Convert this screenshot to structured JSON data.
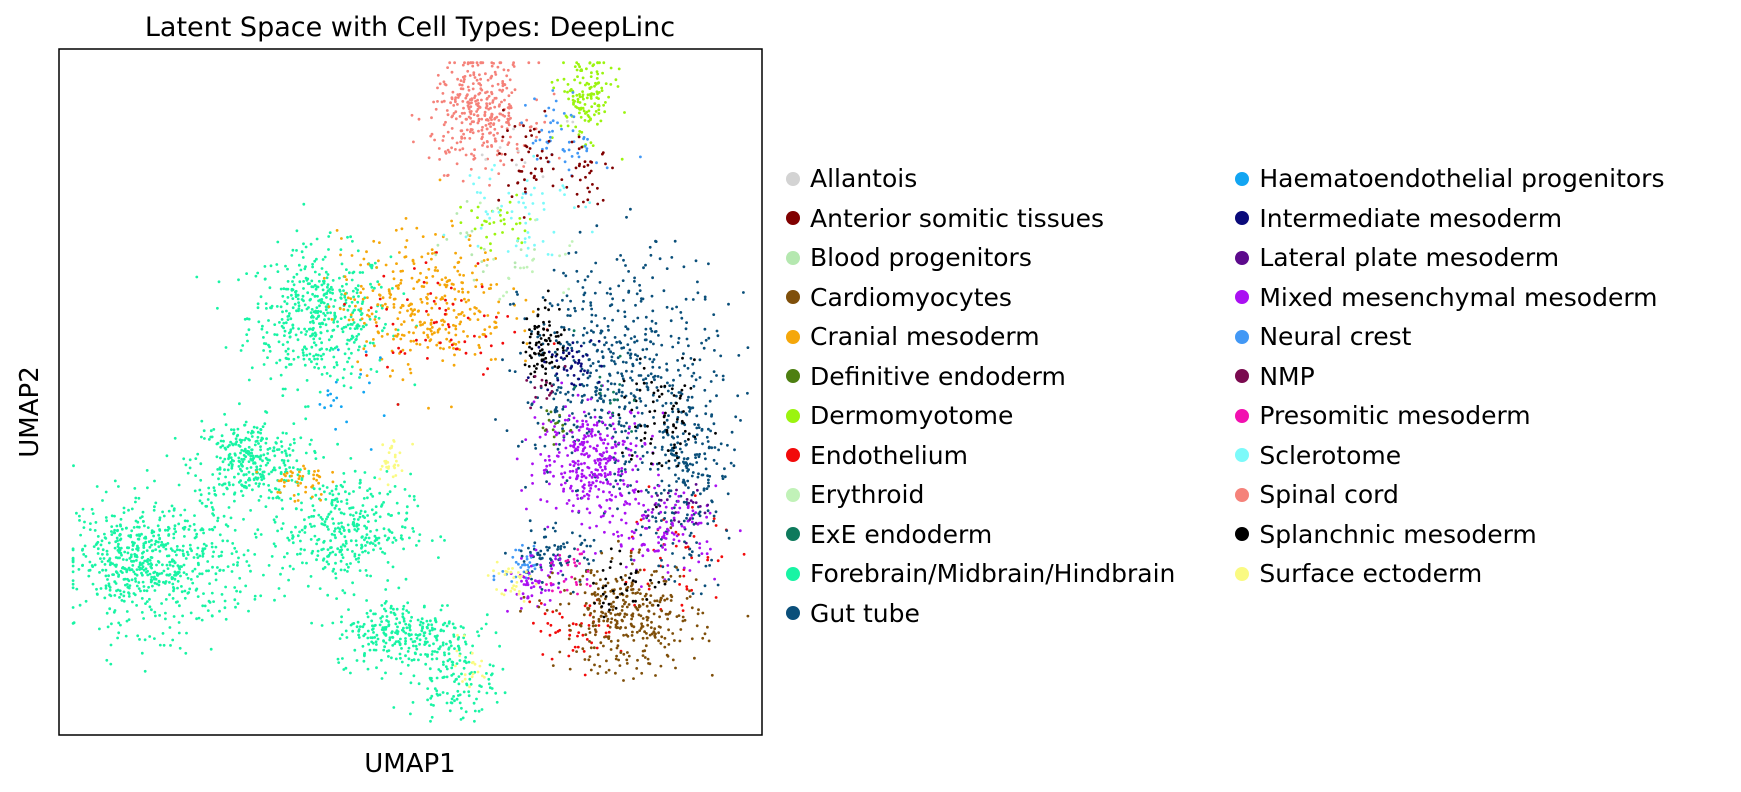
{
  "chart_data": {
    "type": "scatter",
    "title": "Latent Space with Cell Types: DeepLinc",
    "xlabel": "UMAP1",
    "ylabel": "UMAP2",
    "xlim": [
      0,
      100
    ],
    "ylim": [
      0,
      100
    ],
    "xticks": [],
    "yticks": [],
    "grid": false,
    "legend_placement": "right, outside plot area, two columns",
    "series": [
      {
        "name": "Allantois",
        "color": "#d3d3d3"
      },
      {
        "name": "Anterior somitic tissues",
        "color": "#800000"
      },
      {
        "name": "Blood progenitors",
        "color": "#b5e8b0"
      },
      {
        "name": "Cardiomyocytes",
        "color": "#7f4f0a"
      },
      {
        "name": "Cranial mesoderm",
        "color": "#f5a70a"
      },
      {
        "name": "Definitive endoderm",
        "color": "#4d7f11"
      },
      {
        "name": "Dermomyotome",
        "color": "#9bf40f"
      },
      {
        "name": "Endothelium",
        "color": "#f20a0a"
      },
      {
        "name": "Erythroid",
        "color": "#c1f2b8"
      },
      {
        "name": "ExE endoderm",
        "color": "#0e7a5c"
      },
      {
        "name": "Forebrain/Midbrain/Hindbrain",
        "color": "#18f4a4"
      },
      {
        "name": "Gut tube",
        "color": "#0a4f7a"
      },
      {
        "name": "Haematoendothelial progenitors",
        "color": "#12a5f2"
      },
      {
        "name": "Intermediate mesoderm",
        "color": "#0a0a7a"
      },
      {
        "name": "Lateral plate mesoderm",
        "color": "#5c0a8c"
      },
      {
        "name": "Mixed mesenchymal mesoderm",
        "color": "#aa10f2"
      },
      {
        "name": "Neural crest",
        "color": "#4298f5"
      },
      {
        "name": "NMP",
        "color": "#7a0a4f"
      },
      {
        "name": "Presomitic mesoderm",
        "color": "#f210b0"
      },
      {
        "name": "Sclerotome",
        "color": "#7cfafa"
      },
      {
        "name": "Spinal cord",
        "color": "#f5827a"
      },
      {
        "name": "Splanchnic mesoderm",
        "color": "#000000"
      },
      {
        "name": "Surface ectoderm",
        "color": "#fafa82"
      }
    ],
    "regions": [
      {
        "series": "Forebrain/Midbrain/Hindbrain",
        "x": 37,
        "y": 61,
        "sx": 5,
        "sy": 5,
        "n": 480
      },
      {
        "series": "Forebrain/Midbrain/Hindbrain",
        "x": 27,
        "y": 40,
        "sx": 4,
        "sy": 3,
        "n": 320
      },
      {
        "series": "Forebrain/Midbrain/Hindbrain",
        "x": 15,
        "y": 25,
        "sx": 6,
        "sy": 5,
        "n": 520
      },
      {
        "series": "Forebrain/Midbrain/Hindbrain",
        "x": 40,
        "y": 30,
        "sx": 5,
        "sy": 4,
        "n": 360
      },
      {
        "series": "Forebrain/Midbrain/Hindbrain",
        "x": 49,
        "y": 15,
        "sx": 5,
        "sy": 2.5,
        "n": 280
      },
      {
        "series": "Forebrain/Midbrain/Hindbrain",
        "x": 56,
        "y": 8,
        "sx": 3,
        "sy": 3,
        "n": 130
      },
      {
        "series": "Forebrain/Midbrain/Hindbrain",
        "x": 8,
        "y": 25,
        "sx": 3,
        "sy": 4,
        "n": 150
      },
      {
        "series": "Cranial mesoderm",
        "x": 52,
        "y": 63,
        "sx": 6,
        "sy": 5,
        "n": 330
      },
      {
        "series": "Cranial mesoderm",
        "x": 34,
        "y": 37,
        "sx": 2,
        "sy": 1.5,
        "n": 45
      },
      {
        "series": "Endothelium",
        "x": 55,
        "y": 60,
        "sx": 6,
        "sy": 5,
        "n": 60
      },
      {
        "series": "Endothelium",
        "x": 73,
        "y": 15,
        "sx": 3,
        "sy": 2,
        "n": 45
      },
      {
        "series": "Endothelium",
        "x": 88,
        "y": 25,
        "sx": 4,
        "sy": 6,
        "n": 45
      },
      {
        "series": "Spinal cord",
        "x": 60,
        "y": 91,
        "sx": 3.5,
        "sy": 4,
        "n": 340
      },
      {
        "series": "Dermomyotome",
        "x": 75,
        "y": 93,
        "sx": 2,
        "sy": 3,
        "n": 140
      },
      {
        "series": "Dermomyotome",
        "x": 62,
        "y": 74,
        "sx": 3,
        "sy": 2,
        "n": 35
      },
      {
        "series": "Neural crest",
        "x": 72,
        "y": 87,
        "sx": 2.5,
        "sy": 3,
        "n": 55
      },
      {
        "series": "Neural crest",
        "x": 66,
        "y": 25,
        "sx": 1.5,
        "sy": 2,
        "n": 35
      },
      {
        "series": "Gut tube",
        "x": 80,
        "y": 52,
        "sx": 7,
        "sy": 9,
        "n": 580
      },
      {
        "series": "Gut tube",
        "x": 89,
        "y": 37,
        "sx": 3,
        "sy": 7,
        "n": 200
      },
      {
        "series": "Gut tube",
        "x": 70,
        "y": 26,
        "sx": 3,
        "sy": 2,
        "n": 80
      },
      {
        "series": "Mixed mesenchymal mesoderm",
        "x": 76,
        "y": 40,
        "sx": 4,
        "sy": 4,
        "n": 320
      },
      {
        "series": "Mixed mesenchymal mesoderm",
        "x": 86,
        "y": 30,
        "sx": 4,
        "sy": 3,
        "n": 120
      },
      {
        "series": "Mixed mesenchymal mesoderm",
        "x": 68,
        "y": 22,
        "sx": 2,
        "sy": 2,
        "n": 60
      },
      {
        "series": "Cardiomyocytes",
        "x": 81,
        "y": 17,
        "sx": 5,
        "sy": 4,
        "n": 340
      },
      {
        "series": "Splanchnic mesoderm",
        "x": 69,
        "y": 57,
        "sx": 1.5,
        "sy": 3,
        "n": 90
      },
      {
        "series": "Splanchnic mesoderm",
        "x": 86,
        "y": 45,
        "sx": 3,
        "sy": 4,
        "n": 80
      },
      {
        "series": "Splanchnic mesoderm",
        "x": 80,
        "y": 22,
        "sx": 3,
        "sy": 2,
        "n": 40
      },
      {
        "series": "Intermediate mesoderm",
        "x": 73,
        "y": 54,
        "sx": 2,
        "sy": 2,
        "n": 45
      },
      {
        "series": "Anterior somitic tissues",
        "x": 66,
        "y": 84,
        "sx": 2.5,
        "sy": 3,
        "n": 45
      },
      {
        "series": "Anterior somitic tissues",
        "x": 75,
        "y": 82,
        "sx": 2,
        "sy": 3,
        "n": 35
      },
      {
        "series": "Sclerotome",
        "x": 65,
        "y": 78,
        "sx": 4,
        "sy": 4,
        "n": 60
      },
      {
        "series": "Surface ectoderm",
        "x": 47,
        "y": 40,
        "sx": 1,
        "sy": 2,
        "n": 30
      },
      {
        "series": "Surface ectoderm",
        "x": 64,
        "y": 22,
        "sx": 1.5,
        "sy": 2,
        "n": 30
      },
      {
        "series": "Surface ectoderm",
        "x": 58,
        "y": 10,
        "sx": 2,
        "sy": 2,
        "n": 20
      },
      {
        "series": "Presomitic mesoderm",
        "x": 73,
        "y": 24,
        "sx": 2,
        "sy": 2,
        "n": 25
      },
      {
        "series": "Lateral plate mesoderm",
        "x": 88,
        "y": 33,
        "sx": 2,
        "sy": 2,
        "n": 25
      },
      {
        "series": "NMP",
        "x": 70,
        "y": 50,
        "sx": 2,
        "sy": 2,
        "n": 15
      },
      {
        "series": "Definitive endoderm",
        "x": 72,
        "y": 45,
        "sx": 2,
        "sy": 2,
        "n": 15
      },
      {
        "series": "ExE endoderm",
        "x": 78,
        "y": 50,
        "sx": 3,
        "sy": 3,
        "n": 15
      },
      {
        "series": "Blood progenitors",
        "x": 60,
        "y": 70,
        "sx": 3,
        "sy": 3,
        "n": 20
      },
      {
        "series": "Erythroid",
        "x": 67,
        "y": 68,
        "sx": 3,
        "sy": 3,
        "n": 20
      },
      {
        "series": "Allantois",
        "x": 66,
        "y": 86,
        "sx": 3,
        "sy": 3,
        "n": 10
      },
      {
        "series": "Haematoendothelial progenitors",
        "x": 40,
        "y": 50,
        "sx": 3,
        "sy": 3,
        "n": 20
      }
    ]
  }
}
